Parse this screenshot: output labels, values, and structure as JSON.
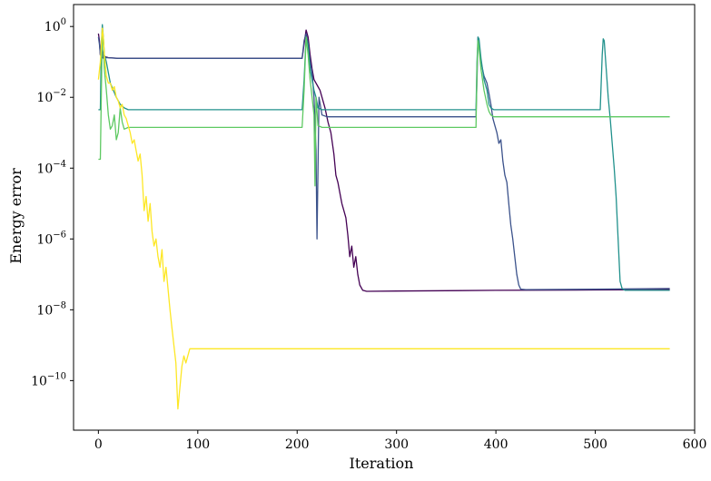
{
  "chart_data": {
    "type": "line",
    "xlabel": "Iteration",
    "ylabel": "Energy error",
    "yscale": "log",
    "xlim": [
      -25,
      600
    ],
    "ylim_exp": [
      -11.4,
      0.62
    ],
    "x_ticks": [
      0,
      100,
      200,
      300,
      400,
      500,
      600
    ],
    "y_ticks": [
      {
        "exp": 0,
        "base": "10",
        "sup": "0"
      },
      {
        "exp": -2,
        "base": "10",
        "sup": "−2"
      },
      {
        "exp": -4,
        "base": "10",
        "sup": "−4"
      },
      {
        "exp": -6,
        "base": "10",
        "sup": "−6"
      },
      {
        "exp": -8,
        "base": "10",
        "sup": "−8"
      },
      {
        "exp": -10,
        "base": "10",
        "sup": "−10"
      }
    ],
    "grid": false,
    "legend": "none",
    "series": [
      {
        "color": "#440154",
        "points": [
          [
            0,
            -0.2
          ],
          [
            1,
            -0.4
          ],
          [
            2,
            -0.8
          ],
          [
            3,
            -0.85
          ],
          [
            4,
            -0.88
          ],
          [
            6,
            -0.85
          ],
          [
            10,
            -0.88
          ],
          [
            20,
            -0.9
          ],
          [
            100,
            -0.9
          ],
          [
            205,
            -0.9
          ],
          [
            207,
            -0.5
          ],
          [
            209,
            -0.1
          ],
          [
            211,
            -0.3
          ],
          [
            213,
            -0.8
          ],
          [
            215,
            -1.2
          ],
          [
            217,
            -1.5
          ],
          [
            219,
            -1.6
          ],
          [
            221,
            -1.7
          ],
          [
            223,
            -1.8
          ],
          [
            225,
            -2.0
          ],
          [
            228,
            -2.3
          ],
          [
            231,
            -2.7
          ],
          [
            234,
            -3.0
          ],
          [
            237,
            -3.6
          ],
          [
            239,
            -4.2
          ],
          [
            241,
            -4.4
          ],
          [
            243,
            -4.7
          ],
          [
            245,
            -5.0
          ],
          [
            247,
            -5.2
          ],
          [
            249,
            -5.4
          ],
          [
            251,
            -5.9
          ],
          [
            253,
            -6.5
          ],
          [
            255,
            -6.2
          ],
          [
            257,
            -6.8
          ],
          [
            259,
            -6.5
          ],
          [
            261,
            -7.0
          ],
          [
            263,
            -7.3
          ],
          [
            266,
            -7.45
          ],
          [
            270,
            -7.48
          ],
          [
            300,
            -7.47
          ],
          [
            400,
            -7.45
          ],
          [
            500,
            -7.44
          ],
          [
            575,
            -7.43
          ]
        ]
      },
      {
        "color": "#3b528b",
        "points": [
          [
            0,
            -0.3
          ],
          [
            1,
            -0.5
          ],
          [
            2,
            -0.8
          ],
          [
            3,
            -0.5
          ],
          [
            5,
            -0.9
          ],
          [
            8,
            -0.88
          ],
          [
            20,
            -0.9
          ],
          [
            100,
            -0.9
          ],
          [
            205,
            -0.9
          ],
          [
            207,
            -0.4
          ],
          [
            209,
            -0.2
          ],
          [
            211,
            -0.5
          ],
          [
            213,
            -1.0
          ],
          [
            215,
            -1.3
          ],
          [
            217,
            -2.0
          ],
          [
            219,
            -3.5
          ],
          [
            220,
            -6.0
          ],
          [
            222,
            -2.0
          ],
          [
            225,
            -2.5
          ],
          [
            230,
            -2.55
          ],
          [
            300,
            -2.55
          ],
          [
            380,
            -2.55
          ],
          [
            381,
            -1.5
          ],
          [
            382,
            -0.3
          ],
          [
            383,
            -0.5
          ],
          [
            385,
            -1.0
          ],
          [
            388,
            -1.4
          ],
          [
            391,
            -1.6
          ],
          [
            393,
            -1.9
          ],
          [
            395,
            -2.2
          ],
          [
            397,
            -2.6
          ],
          [
            399,
            -2.8
          ],
          [
            401,
            -3.0
          ],
          [
            403,
            -3.3
          ],
          [
            405,
            -3.2
          ],
          [
            407,
            -3.8
          ],
          [
            409,
            -4.2
          ],
          [
            411,
            -4.4
          ],
          [
            413,
            -5.0
          ],
          [
            415,
            -5.6
          ],
          [
            417,
            -6.0
          ],
          [
            419,
            -6.5
          ],
          [
            421,
            -7.0
          ],
          [
            423,
            -7.3
          ],
          [
            425,
            -7.42
          ],
          [
            430,
            -7.43
          ],
          [
            500,
            -7.42
          ],
          [
            575,
            -7.4
          ]
        ]
      },
      {
        "color": "#21918c",
        "points": [
          [
            0,
            -2.35
          ],
          [
            2,
            -2.35
          ],
          [
            3,
            -0.5
          ],
          [
            4,
            0.05
          ],
          [
            5,
            -0.3
          ],
          [
            6,
            -0.8
          ],
          [
            8,
            -1.0
          ],
          [
            10,
            -1.3
          ],
          [
            12,
            -1.6
          ],
          [
            15,
            -1.8
          ],
          [
            18,
            -2.0
          ],
          [
            22,
            -2.2
          ],
          [
            26,
            -2.3
          ],
          [
            30,
            -2.35
          ],
          [
            100,
            -2.35
          ],
          [
            205,
            -2.35
          ],
          [
            207,
            -1.5
          ],
          [
            209,
            -0.3
          ],
          [
            211,
            -0.5
          ],
          [
            213,
            -1.2
          ],
          [
            215,
            -1.5
          ],
          [
            217,
            -1.8
          ],
          [
            219,
            -2.0
          ],
          [
            221,
            -2.3
          ],
          [
            225,
            -2.35
          ],
          [
            300,
            -2.35
          ],
          [
            380,
            -2.35
          ],
          [
            381,
            -1.0
          ],
          [
            382,
            -0.3
          ],
          [
            383,
            -0.35
          ],
          [
            385,
            -0.9
          ],
          [
            388,
            -1.5
          ],
          [
            391,
            -1.8
          ],
          [
            393,
            -2.2
          ],
          [
            395,
            -2.3
          ],
          [
            398,
            -2.35
          ],
          [
            400,
            -2.35
          ],
          [
            505,
            -2.35
          ],
          [
            507,
            -0.8
          ],
          [
            508,
            -0.35
          ],
          [
            509,
            -0.4
          ],
          [
            511,
            -1.2
          ],
          [
            513,
            -2.0
          ],
          [
            515,
            -2.6
          ],
          [
            517,
            -3.3
          ],
          [
            519,
            -4.0
          ],
          [
            521,
            -4.8
          ],
          [
            523,
            -6.0
          ],
          [
            525,
            -7.2
          ],
          [
            527,
            -7.4
          ],
          [
            530,
            -7.45
          ],
          [
            575,
            -7.45
          ]
        ]
      },
      {
        "color": "#5ec962",
        "points": [
          [
            0,
            -3.75
          ],
          [
            2,
            -3.75
          ],
          [
            4,
            -0.05
          ],
          [
            5,
            -0.5
          ],
          [
            6,
            -1.2
          ],
          [
            8,
            -1.8
          ],
          [
            10,
            -2.5
          ],
          [
            12,
            -2.9
          ],
          [
            14,
            -2.8
          ],
          [
            16,
            -2.5
          ],
          [
            18,
            -3.2
          ],
          [
            20,
            -3.0
          ],
          [
            22,
            -2.3
          ],
          [
            24,
            -2.7
          ],
          [
            26,
            -2.9
          ],
          [
            30,
            -2.85
          ],
          [
            40,
            -2.85
          ],
          [
            100,
            -2.85
          ],
          [
            205,
            -2.85
          ],
          [
            207,
            -1.8
          ],
          [
            209,
            -0.3
          ],
          [
            211,
            -0.8
          ],
          [
            213,
            -1.5
          ],
          [
            215,
            -2.0
          ],
          [
            217,
            -2.5
          ],
          [
            218,
            -4.5
          ],
          [
            219,
            -2.0
          ],
          [
            221,
            -2.8
          ],
          [
            225,
            -2.85
          ],
          [
            300,
            -2.85
          ],
          [
            380,
            -2.85
          ],
          [
            381,
            -1.2
          ],
          [
            382,
            -0.4
          ],
          [
            383,
            -0.6
          ],
          [
            385,
            -1.2
          ],
          [
            388,
            -1.8
          ],
          [
            391,
            -2.2
          ],
          [
            393,
            -2.4
          ],
          [
            395,
            -2.5
          ],
          [
            398,
            -2.55
          ],
          [
            400,
            -2.55
          ],
          [
            500,
            -2.55
          ],
          [
            575,
            -2.55
          ]
        ]
      },
      {
        "color": "#fde725",
        "points": [
          [
            0,
            -1.5
          ],
          [
            2,
            -1.0
          ],
          [
            4,
            -0.05
          ],
          [
            5,
            -0.3
          ],
          [
            6,
            -0.8
          ],
          [
            8,
            -1.4
          ],
          [
            10,
            -1.6
          ],
          [
            12,
            -1.6
          ],
          [
            14,
            -1.8
          ],
          [
            16,
            -1.7
          ],
          [
            18,
            -2.0
          ],
          [
            20,
            -2.1
          ],
          [
            22,
            -2.3
          ],
          [
            24,
            -2.2
          ],
          [
            26,
            -2.5
          ],
          [
            28,
            -2.6
          ],
          [
            30,
            -2.8
          ],
          [
            32,
            -3.0
          ],
          [
            34,
            -3.3
          ],
          [
            36,
            -3.2
          ],
          [
            38,
            -3.5
          ],
          [
            40,
            -3.8
          ],
          [
            42,
            -3.6
          ],
          [
            44,
            -4.2
          ],
          [
            46,
            -5.2
          ],
          [
            48,
            -4.8
          ],
          [
            50,
            -5.5
          ],
          [
            52,
            -5.0
          ],
          [
            54,
            -5.8
          ],
          [
            56,
            -6.2
          ],
          [
            58,
            -6.0
          ],
          [
            60,
            -6.5
          ],
          [
            62,
            -6.8
          ],
          [
            64,
            -6.3
          ],
          [
            66,
            -7.2
          ],
          [
            68,
            -6.8
          ],
          [
            70,
            -7.4
          ],
          [
            72,
            -8.0
          ],
          [
            74,
            -8.5
          ],
          [
            76,
            -9.0
          ],
          [
            78,
            -9.5
          ],
          [
            80,
            -10.8
          ],
          [
            82,
            -10.2
          ],
          [
            84,
            -9.6
          ],
          [
            86,
            -9.3
          ],
          [
            88,
            -9.5
          ],
          [
            92,
            -9.1
          ],
          [
            100,
            -9.1
          ],
          [
            200,
            -9.1
          ],
          [
            300,
            -9.1
          ],
          [
            400,
            -9.1
          ],
          [
            500,
            -9.1
          ],
          [
            575,
            -9.1
          ]
        ]
      }
    ]
  }
}
